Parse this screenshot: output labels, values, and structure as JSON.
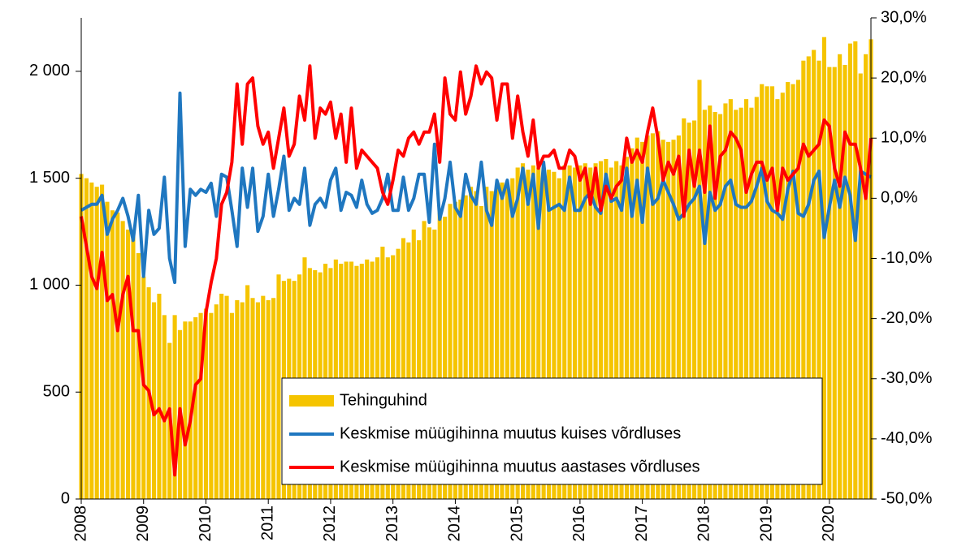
{
  "chart_data": {
    "type": "bar_line",
    "categories": [
      "2008",
      null,
      null,
      null,
      null,
      null,
      null,
      null,
      null,
      null,
      null,
      null,
      "2009",
      null,
      null,
      null,
      null,
      null,
      null,
      null,
      null,
      null,
      null,
      null,
      "2010",
      null,
      null,
      null,
      null,
      null,
      null,
      null,
      null,
      null,
      null,
      null,
      "2011",
      null,
      null,
      null,
      null,
      null,
      null,
      null,
      null,
      null,
      null,
      null,
      "2012",
      null,
      null,
      null,
      null,
      null,
      null,
      null,
      null,
      null,
      null,
      null,
      "2013",
      null,
      null,
      null,
      null,
      null,
      null,
      null,
      null,
      null,
      null,
      null,
      "2014",
      null,
      null,
      null,
      null,
      null,
      null,
      null,
      null,
      null,
      null,
      null,
      "2015",
      null,
      null,
      null,
      null,
      null,
      null,
      null,
      null,
      null,
      null,
      null,
      "2016",
      null,
      null,
      null,
      null,
      null,
      null,
      null,
      null,
      null,
      null,
      null,
      "2017",
      null,
      null,
      null,
      null,
      null,
      null,
      null,
      null,
      null,
      null,
      null,
      "2018",
      null,
      null,
      null,
      null,
      null,
      null,
      null,
      null,
      null,
      null,
      null,
      "2019",
      null,
      null,
      null,
      null,
      null,
      null,
      null,
      null,
      null,
      null,
      null,
      "2020",
      null,
      null,
      null,
      null,
      null,
      null,
      null,
      null
    ],
    "series": [
      {
        "name": "Tehinguhind",
        "type": "bar",
        "color": "#f5c400",
        "axis": "y",
        "values": [
          1520,
          1500,
          1480,
          1460,
          1470,
          1390,
          1350,
          1340,
          1300,
          1260,
          1250,
          1150,
          1040,
          990,
          920,
          960,
          860,
          730,
          860,
          790,
          830,
          830,
          850,
          870,
          890,
          870,
          910,
          960,
          950,
          870,
          930,
          920,
          1000,
          940,
          920,
          950,
          930,
          940,
          1050,
          1020,
          1030,
          1020,
          1050,
          1130,
          1080,
          1070,
          1060,
          1100,
          1080,
          1120,
          1100,
          1110,
          1110,
          1090,
          1100,
          1120,
          1110,
          1130,
          1180,
          1130,
          1140,
          1170,
          1220,
          1200,
          1260,
          1210,
          1300,
          1270,
          1260,
          1340,
          1320,
          1380,
          1390,
          1400,
          1420,
          1460,
          1440,
          1370,
          1460,
          1440,
          1460,
          1480,
          1470,
          1500,
          1550,
          1570,
          1540,
          1560,
          1550,
          1550,
          1540,
          1530,
          1500,
          1560,
          1560,
          1550,
          1560,
          1570,
          1550,
          1570,
          1580,
          1590,
          1550,
          1580,
          1560,
          1600,
          1640,
          1690,
          1670,
          1700,
          1710,
          1720,
          1680,
          1670,
          1680,
          1700,
          1780,
          1760,
          1770,
          1960,
          1820,
          1840,
          1810,
          1800,
          1850,
          1870,
          1820,
          1830,
          1870,
          1830,
          1880,
          1940,
          1930,
          1930,
          1870,
          1900,
          1950,
          1940,
          1960,
          2050,
          2070,
          2100,
          2050,
          2160,
          2020,
          2020,
          2080,
          2030,
          2130,
          2140,
          1990,
          2080,
          2150
        ]
      },
      {
        "name": "Keskmise müügihinna muutus kuises võrdluses",
        "type": "line",
        "color": "#1f77c0",
        "axis": "y2",
        "values": [
          -2,
          -1.5,
          -1,
          -1,
          0.5,
          -6,
          -3.5,
          -2,
          0,
          -3,
          -7,
          0.5,
          -13,
          -2,
          -6,
          -5,
          3.5,
          -10,
          -14,
          17.5,
          -8,
          1.5,
          0.5,
          1.5,
          1,
          2.5,
          -3,
          4,
          3.5,
          -2,
          -8,
          5,
          -1.5,
          5,
          -5.5,
          -3,
          4,
          -3,
          1.5,
          7,
          -2,
          0,
          -1,
          5,
          -4.5,
          -1,
          0,
          -1.5,
          3,
          5,
          -2,
          1,
          0.5,
          -1.5,
          3,
          -1,
          -2.5,
          -2,
          0,
          4,
          -2,
          -2,
          3.5,
          -2,
          0,
          4,
          4,
          -4,
          9,
          -3.5,
          0,
          6,
          -1.5,
          -3,
          4,
          0.5,
          -1,
          6,
          -2,
          -4.5,
          3,
          0,
          3,
          -3,
          0,
          5,
          -1,
          4,
          -5,
          6,
          -2,
          -1.5,
          -1,
          -2,
          3.5,
          -2,
          -2,
          0,
          1,
          -1.5,
          -2.5,
          4,
          -0.5,
          0,
          -2,
          5,
          -3,
          3,
          -4,
          5,
          -1,
          0,
          3,
          1,
          -1,
          -3.5,
          -2.5,
          -1,
          0,
          2,
          -7.5,
          1,
          -2,
          -1,
          2,
          3,
          -1,
          -1.5,
          -1.5,
          -0.5,
          2,
          5,
          -0.5,
          -2,
          -2.5,
          -3.5,
          1.5,
          4.5,
          -2.5,
          -3,
          -1,
          3,
          4.5,
          -6.5,
          -1.5,
          3,
          -1.5,
          3.5,
          0.5,
          -7,
          4.5,
          4,
          3.5
        ]
      },
      {
        "name": "Keskmise müügihinna muutus aastases võrdluses",
        "type": "line",
        "color": "#ff0000",
        "axis": "y2",
        "values": [
          -3,
          -8,
          -13,
          -15,
          -9,
          -17,
          -16,
          -22,
          -16,
          -13,
          -22,
          -22,
          -31,
          -32,
          -36,
          -35,
          -37,
          -35,
          -46,
          -35,
          -41,
          -37,
          -31,
          -30,
          -19,
          -14,
          -10,
          -1,
          1,
          6,
          19,
          9,
          19,
          20,
          12,
          9,
          11,
          5,
          10,
          15,
          7,
          9,
          17,
          13,
          22,
          10,
          15,
          14,
          16,
          10,
          14,
          6,
          15,
          5,
          8,
          7,
          6,
          5,
          1,
          -1,
          3,
          8,
          7,
          10,
          11,
          9,
          11,
          11,
          14,
          6,
          20,
          14,
          13,
          21,
          14,
          17,
          22,
          19,
          21,
          20,
          13,
          19,
          19,
          10,
          17,
          11,
          7,
          13,
          5,
          7,
          7,
          8,
          5,
          5,
          8,
          7,
          3,
          5,
          -1,
          5,
          -2,
          2,
          0,
          2,
          3,
          10,
          6,
          8,
          6,
          11,
          15,
          10,
          3,
          6,
          4,
          7,
          -3,
          8,
          2,
          8,
          1,
          12,
          0,
          7,
          8,
          11,
          10,
          8,
          1,
          4,
          6,
          6,
          3,
          5,
          -2,
          5,
          3,
          4,
          5,
          9,
          7,
          8,
          9,
          13,
          12,
          5,
          2,
          11,
          9,
          9,
          5,
          0,
          10
        ]
      }
    ],
    "ylim": [
      0,
      2250
    ],
    "yticks": [
      0,
      500,
      {
        "value": 1000,
        "label": "1 000"
      },
      {
        "value": 1500,
        "label": "1 500"
      },
      {
        "value": 2000,
        "label": "2 000"
      }
    ],
    "y2lim": [
      -50,
      30
    ],
    "y2ticks": [
      {
        "value": -50,
        "label": "-50,0%"
      },
      {
        "value": -40,
        "label": "-40,0%"
      },
      {
        "value": -30,
        "label": "-30,0%"
      },
      {
        "value": -20,
        "label": "-20,0%"
      },
      {
        "value": -10,
        "label": "-10,0%"
      },
      {
        "value": 0,
        "label": "0,0%"
      },
      {
        "value": 10,
        "label": "10,0%"
      },
      {
        "value": 20,
        "label": "20,0%"
      },
      {
        "value": 30,
        "label": "30,0%"
      }
    ],
    "grid": false,
    "legend": "bottom-center"
  }
}
